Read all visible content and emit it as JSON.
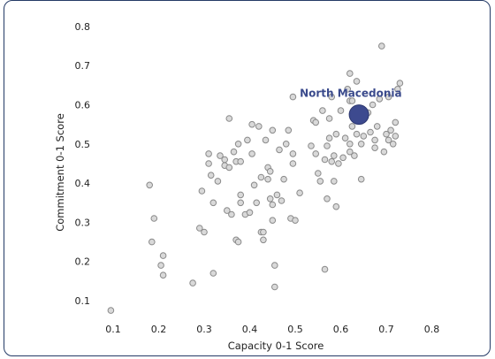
{
  "chart_data": {
    "type": "scatter",
    "xlabel": "Capacity 0-1 Score",
    "ylabel": "Commitment 0-1 Score",
    "xlim": [
      0.05,
      0.85
    ],
    "ylim": [
      0.05,
      0.85
    ],
    "x_ticks": [
      {
        "value": 0.1,
        "label": "0.1"
      },
      {
        "value": 0.2,
        "label": "0.2"
      },
      {
        "value": 0.3,
        "label": "0.3"
      },
      {
        "value": 0.4,
        "label": "0.4"
      },
      {
        "value": 0.5,
        "label": "0.5"
      },
      {
        "value": 0.6,
        "label": "0.6"
      },
      {
        "value": 0.7,
        "label": "0.7"
      },
      {
        "value": 0.8,
        "label": "0.8"
      }
    ],
    "y_ticks": [
      {
        "value": 0.1,
        "label": "0.1"
      },
      {
        "value": 0.2,
        "label": "0.2"
      },
      {
        "value": 0.3,
        "label": "0.3"
      },
      {
        "value": 0.4,
        "label": "0.4"
      },
      {
        "value": 0.5,
        "label": "0.5"
      },
      {
        "value": 0.6,
        "label": "0.6"
      },
      {
        "value": 0.7,
        "label": "0.7"
      },
      {
        "value": 0.8,
        "label": "0.8"
      }
    ],
    "grid": false,
    "colors": {
      "point_fill": "#d9d9d9",
      "point_stroke": "#8a8a8a",
      "highlight": "#3d4a8f",
      "frame": "#243a66"
    },
    "highlight": {
      "label": "North Macedonia",
      "x": 0.64,
      "y": 0.575
    },
    "points": [
      [
        0.095,
        0.075
      ],
      [
        0.18,
        0.395
      ],
      [
        0.185,
        0.25
      ],
      [
        0.19,
        0.31
      ],
      [
        0.205,
        0.19
      ],
      [
        0.21,
        0.215
      ],
      [
        0.21,
        0.165
      ],
      [
        0.275,
        0.145
      ],
      [
        0.29,
        0.285
      ],
      [
        0.295,
        0.38
      ],
      [
        0.3,
        0.275
      ],
      [
        0.31,
        0.45
      ],
      [
        0.31,
        0.475
      ],
      [
        0.315,
        0.42
      ],
      [
        0.32,
        0.17
      ],
      [
        0.32,
        0.35
      ],
      [
        0.33,
        0.405
      ],
      [
        0.335,
        0.47
      ],
      [
        0.345,
        0.445
      ],
      [
        0.345,
        0.46
      ],
      [
        0.35,
        0.33
      ],
      [
        0.355,
        0.565
      ],
      [
        0.355,
        0.44
      ],
      [
        0.36,
        0.32
      ],
      [
        0.365,
        0.48
      ],
      [
        0.37,
        0.255
      ],
      [
        0.37,
        0.455
      ],
      [
        0.375,
        0.25
      ],
      [
        0.375,
        0.5
      ],
      [
        0.38,
        0.35
      ],
      [
        0.38,
        0.37
      ],
      [
        0.38,
        0.455
      ],
      [
        0.39,
        0.32
      ],
      [
        0.395,
        0.51
      ],
      [
        0.4,
        0.325
      ],
      [
        0.405,
        0.475
      ],
      [
        0.405,
        0.55
      ],
      [
        0.41,
        0.395
      ],
      [
        0.415,
        0.35
      ],
      [
        0.42,
        0.545
      ],
      [
        0.425,
        0.275
      ],
      [
        0.425,
        0.415
      ],
      [
        0.43,
        0.275
      ],
      [
        0.43,
        0.255
      ],
      [
        0.435,
        0.51
      ],
      [
        0.44,
        0.41
      ],
      [
        0.44,
        0.44
      ],
      [
        0.445,
        0.36
      ],
      [
        0.445,
        0.43
      ],
      [
        0.45,
        0.305
      ],
      [
        0.45,
        0.345
      ],
      [
        0.45,
        0.535
      ],
      [
        0.455,
        0.19
      ],
      [
        0.455,
        0.135
      ],
      [
        0.46,
        0.37
      ],
      [
        0.465,
        0.485
      ],
      [
        0.47,
        0.355
      ],
      [
        0.475,
        0.41
      ],
      [
        0.48,
        0.5
      ],
      [
        0.485,
        0.535
      ],
      [
        0.49,
        0.31
      ],
      [
        0.495,
        0.45
      ],
      [
        0.495,
        0.475
      ],
      [
        0.495,
        0.62
      ],
      [
        0.5,
        0.305
      ],
      [
        0.51,
        0.375
      ],
      [
        0.535,
        0.495
      ],
      [
        0.54,
        0.56
      ],
      [
        0.545,
        0.475
      ],
      [
        0.545,
        0.555
      ],
      [
        0.55,
        0.425
      ],
      [
        0.555,
        0.405
      ],
      [
        0.56,
        0.585
      ],
      [
        0.565,
        0.18
      ],
      [
        0.565,
        0.46
      ],
      [
        0.57,
        0.36
      ],
      [
        0.57,
        0.495
      ],
      [
        0.575,
        0.515
      ],
      [
        0.575,
        0.565
      ],
      [
        0.58,
        0.455
      ],
      [
        0.58,
        0.62
      ],
      [
        0.585,
        0.405
      ],
      [
        0.585,
        0.47
      ],
      [
        0.59,
        0.34
      ],
      [
        0.59,
        0.525
      ],
      [
        0.595,
        0.45
      ],
      [
        0.6,
        0.585
      ],
      [
        0.605,
        0.465
      ],
      [
        0.61,
        0.515
      ],
      [
        0.615,
        0.64
      ],
      [
        0.62,
        0.48
      ],
      [
        0.62,
        0.5
      ],
      [
        0.62,
        0.61
      ],
      [
        0.62,
        0.68
      ],
      [
        0.625,
        0.545
      ],
      [
        0.625,
        0.61
      ],
      [
        0.63,
        0.47
      ],
      [
        0.635,
        0.525
      ],
      [
        0.635,
        0.66
      ],
      [
        0.645,
        0.41
      ],
      [
        0.645,
        0.5
      ],
      [
        0.65,
        0.52
      ],
      [
        0.655,
        0.575
      ],
      [
        0.66,
        0.58
      ],
      [
        0.665,
        0.53
      ],
      [
        0.67,
        0.6
      ],
      [
        0.675,
        0.49
      ],
      [
        0.675,
        0.51
      ],
      [
        0.68,
        0.545
      ],
      [
        0.685,
        0.615
      ],
      [
        0.69,
        0.75
      ],
      [
        0.695,
        0.48
      ],
      [
        0.7,
        0.525
      ],
      [
        0.705,
        0.62
      ],
      [
        0.71,
        0.535
      ],
      [
        0.715,
        0.5
      ],
      [
        0.72,
        0.555
      ],
      [
        0.725,
        0.64
      ],
      [
        0.73,
        0.655
      ],
      [
        0.72,
        0.52
      ],
      [
        0.705,
        0.51
      ]
    ]
  }
}
